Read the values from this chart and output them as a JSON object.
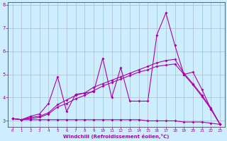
{
  "xlabel": "Windchill (Refroidissement éolien,°C)",
  "background_color": "#cceeff",
  "line_color": "#aa00aa",
  "grid_color": "#aabbcc",
  "xlim": [
    -0.5,
    23.5
  ],
  "ylim": [
    2.75,
    8.1
  ],
  "yticks": [
    3,
    4,
    5,
    6,
    7,
    8
  ],
  "xticks": [
    0,
    1,
    2,
    3,
    4,
    5,
    6,
    7,
    8,
    9,
    10,
    11,
    12,
    13,
    14,
    15,
    16,
    17,
    18,
    19,
    20,
    21,
    22,
    23
  ],
  "series1_x": [
    0,
    1,
    2,
    3,
    4,
    5,
    6,
    7,
    8,
    9,
    10,
    11,
    12,
    13,
    14,
    15,
    16,
    17,
    18,
    19,
    20,
    21,
    22,
    23
  ],
  "series1_y": [
    3.1,
    3.05,
    3.05,
    3.05,
    3.05,
    3.05,
    3.05,
    3.05,
    3.05,
    3.05,
    3.05,
    3.05,
    3.05,
    3.05,
    3.05,
    3.0,
    3.0,
    3.0,
    3.0,
    2.95,
    2.95,
    2.95,
    2.9,
    2.85
  ],
  "series2_x": [
    0,
    1,
    2,
    3,
    4,
    5,
    6,
    7,
    8,
    9,
    10,
    11,
    12,
    13,
    14,
    15,
    16,
    17,
    18,
    19,
    20,
    21,
    22,
    23
  ],
  "series2_y": [
    3.1,
    3.05,
    3.1,
    3.15,
    3.3,
    3.6,
    3.75,
    3.95,
    4.1,
    4.3,
    4.5,
    4.65,
    4.8,
    4.95,
    5.1,
    5.2,
    5.35,
    5.4,
    5.45,
    5.0,
    4.55,
    4.05,
    3.5,
    2.85
  ],
  "series3_x": [
    0,
    1,
    2,
    3,
    4,
    5,
    6,
    7,
    8,
    9,
    10,
    11,
    12,
    13,
    14,
    15,
    16,
    17,
    18,
    19,
    20,
    21,
    22,
    23
  ],
  "series3_y": [
    3.1,
    3.05,
    3.15,
    3.2,
    3.35,
    3.7,
    3.9,
    4.1,
    4.2,
    4.45,
    4.6,
    4.75,
    4.9,
    5.05,
    5.2,
    5.35,
    5.5,
    5.6,
    5.65,
    5.05,
    4.6,
    4.1,
    3.55,
    2.85
  ],
  "series4_x": [
    0,
    1,
    2,
    3,
    4,
    5,
    6,
    7,
    8,
    9,
    10,
    11,
    12,
    13,
    14,
    15,
    16,
    17,
    18,
    19,
    20,
    21,
    22,
    23
  ],
  "series4_y": [
    3.1,
    3.05,
    3.2,
    3.3,
    3.75,
    4.9,
    3.4,
    4.15,
    4.2,
    4.25,
    5.7,
    4.0,
    5.3,
    3.85,
    3.85,
    3.85,
    6.7,
    7.65,
    6.25,
    5.0,
    5.1,
    4.35,
    3.5,
    2.85
  ]
}
